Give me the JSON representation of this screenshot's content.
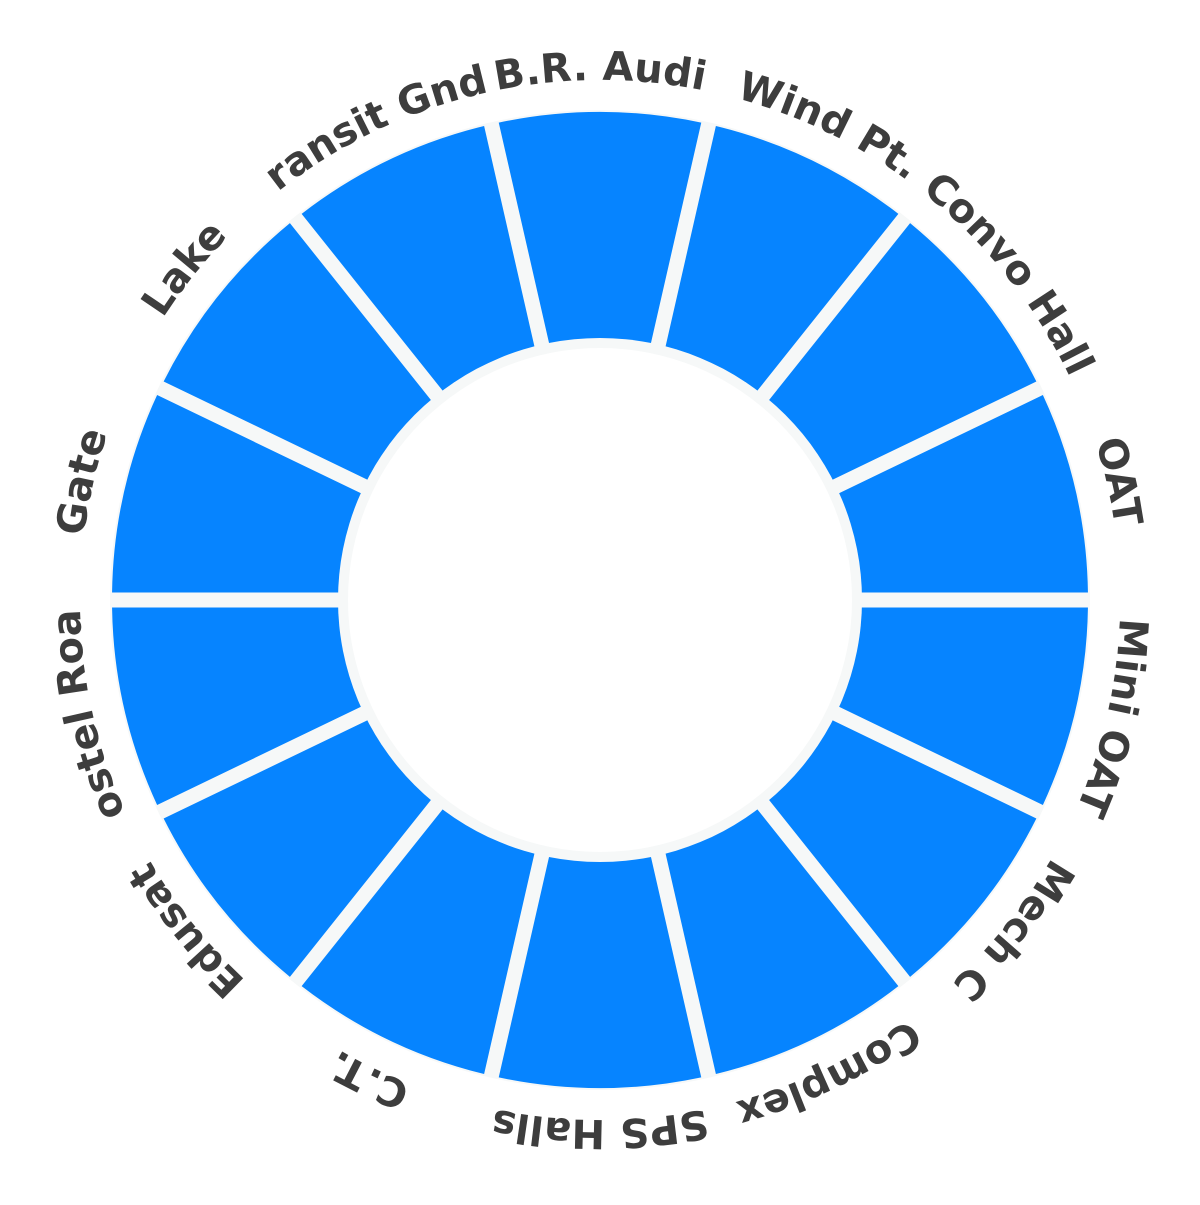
{
  "wheel": {
    "segment_color": "#0684ff",
    "gap_color": "#f6f8f8",
    "center_color": "#ffffff",
    "label_color": "#3d3d3d",
    "segments": [
      {
        "name": "seg-br-audi",
        "label": "B.R. Audi"
      },
      {
        "name": "seg-wind-pt",
        "label": "Wind Pt."
      },
      {
        "name": "seg-convo-hall",
        "label": "Convo Hall"
      },
      {
        "name": "seg-oat",
        "label": "OAT"
      },
      {
        "name": "seg-mini-oat",
        "label": "Mini OAT"
      },
      {
        "name": "seg-mech-c",
        "label": "Mech C"
      },
      {
        "name": "seg-complex",
        "label": "Complex"
      },
      {
        "name": "seg-sps-halls",
        "label": "SPS Halls"
      },
      {
        "name": "seg-ct",
        "label": "C.T."
      },
      {
        "name": "seg-edusat",
        "label": "Edusat"
      },
      {
        "name": "seg-hostel-road",
        "label": "Hostel Road"
      },
      {
        "name": "seg-gate",
        "label": "Gate"
      },
      {
        "name": "seg-lake",
        "label": "Lake"
      },
      {
        "name": "seg-transit-gnd",
        "label": "Transit Gnd."
      }
    ]
  }
}
